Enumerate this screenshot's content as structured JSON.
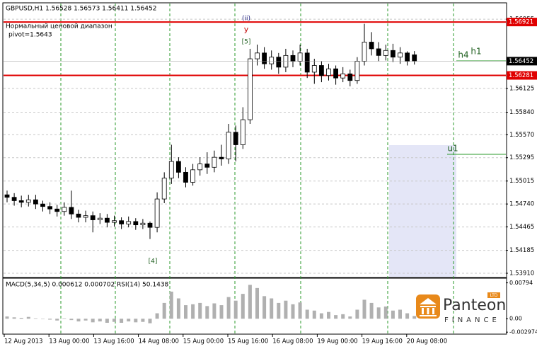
{
  "chart_data": {
    "type": "candlestick",
    "title": "GBPUSD,H1 1.56528 1.56573 1.56411 1.56452",
    "subtitle": "Нормальный ценовой диапазон",
    "pivot_label": "pivot=1.5643",
    "annotations": [
      "(ii)",
      "y",
      "[5]",
      "[4]",
      "h4",
      "h1",
      "u1"
    ],
    "x_labels": [
      "12 Aug 2013",
      "13 Aug 00:00",
      "13 Aug 16:00",
      "14 Aug 08:00",
      "15 Aug 00:00",
      "15 Aug 16:00",
      "16 Aug 08:00",
      "19 Aug 00:00",
      "19 Aug 16:00",
      "20 Aug 08:00"
    ],
    "open": [
      1.5485,
      1.5482,
      1.5478,
      1.5476,
      1.5479,
      1.5474,
      1.5471,
      1.5468,
      1.5465,
      1.547,
      1.5462,
      1.5458,
      1.546,
      1.5455,
      1.5457,
      1.5452,
      1.5454,
      1.545,
      1.5453,
      1.5449,
      1.5451,
      1.5446,
      1.548,
      1.5505,
      1.5525,
      1.5512,
      1.55,
      1.5515,
      1.5522,
      1.5518,
      1.553,
      1.5528,
      1.556,
      1.5545,
      1.5575,
      1.5648,
      1.5655,
      1.5642,
      1.565,
      1.5638,
      1.5652,
      1.5645,
      1.5655,
      1.5632,
      1.564,
      1.5628,
      1.5636,
      1.5625,
      1.563,
      1.5622,
      1.5645,
      1.5668,
      1.566,
      1.5652,
      1.5658,
      1.565,
      1.5655,
      1.56528
    ],
    "high": [
      1.549,
      1.5487,
      1.5484,
      1.5485,
      1.5485,
      1.5478,
      1.5476,
      1.5473,
      1.5476,
      1.549,
      1.5467,
      1.5466,
      1.5465,
      1.5463,
      1.5462,
      1.546,
      1.5458,
      1.5459,
      1.5457,
      1.5456,
      1.5453,
      1.5488,
      1.5512,
      1.5545,
      1.553,
      1.5518,
      1.5522,
      1.553,
      1.5536,
      1.5538,
      1.5545,
      1.557,
      1.5568,
      1.559,
      1.566,
      1.5665,
      1.5662,
      1.5658,
      1.5655,
      1.566,
      1.5658,
      1.5665,
      1.566,
      1.5648,
      1.5645,
      1.5642,
      1.564,
      1.5638,
      1.5635,
      1.565,
      1.569,
      1.568,
      1.5668,
      1.5665,
      1.5666,
      1.5662,
      1.5657,
      1.56573
    ],
    "low": [
      1.5476,
      1.5472,
      1.547,
      1.5471,
      1.5468,
      1.5465,
      1.5462,
      1.5459,
      1.546,
      1.5456,
      1.5452,
      1.5452,
      1.544,
      1.545,
      1.5446,
      1.5447,
      1.5444,
      1.5446,
      1.5443,
      1.5444,
      1.5432,
      1.544,
      1.5475,
      1.5498,
      1.5505,
      1.5494,
      1.5496,
      1.5508,
      1.551,
      1.5512,
      1.552,
      1.5522,
      1.5525,
      1.554,
      1.557,
      1.564,
      1.5636,
      1.5635,
      1.563,
      1.5632,
      1.5638,
      1.564,
      1.5625,
      1.5618,
      1.562,
      1.5622,
      1.5617,
      1.562,
      1.5615,
      1.5618,
      1.564,
      1.5652,
      1.5645,
      1.5646,
      1.5644,
      1.5642,
      1.564,
      1.56411
    ],
    "close": [
      1.5482,
      1.5478,
      1.5476,
      1.5479,
      1.5474,
      1.5471,
      1.5468,
      1.5465,
      1.547,
      1.5462,
      1.5458,
      1.546,
      1.5455,
      1.5457,
      1.5452,
      1.5454,
      1.545,
      1.5453,
      1.5449,
      1.5451,
      1.5446,
      1.548,
      1.5505,
      1.5525,
      1.5512,
      1.55,
      1.5515,
      1.5522,
      1.5518,
      1.553,
      1.5528,
      1.556,
      1.5545,
      1.5575,
      1.5648,
      1.5655,
      1.5642,
      1.565,
      1.5638,
      1.5652,
      1.5645,
      1.5655,
      1.5632,
      1.564,
      1.5628,
      1.5636,
      1.5625,
      1.563,
      1.5622,
      1.5645,
      1.5668,
      1.566,
      1.5652,
      1.5658,
      1.565,
      1.5655,
      1.5645,
      1.56452
    ],
    "ylim": [
      1.53859,
      1.57117
    ],
    "yticks": [
      1.56955,
      1.56125,
      {
        "value": 1.5584,
        "label": "1.55840"
      },
      {
        "value": 1.5557,
        "label": "1.55570"
      },
      1.55295,
      1.55015,
      {
        "value": 1.5474,
        "label": "1.54740"
      },
      1.54465,
      1.54185,
      {
        "value": 1.5391,
        "label": "1.53910"
      }
    ],
    "levels": [
      {
        "value": 1.56921,
        "color": "#e00000"
      },
      {
        "value": 1.56281,
        "color": "#e00000"
      }
    ],
    "last_price": 1.56452,
    "grid": true,
    "macd": {
      "label": "MACD(5,34,5) 0.000612 0.000702 RSI(14) 50.1438",
      "values": [
        0.0005,
        0.0003,
        0.0002,
        0.0004,
        0.0001,
        0.0,
        -0.0002,
        -0.0004,
        0.0001,
        -0.0003,
        -0.0006,
        -0.0004,
        -0.0008,
        -0.0006,
        -0.0009,
        -0.0007,
        -0.0009,
        -0.0006,
        -0.0008,
        -0.0007,
        -0.001,
        0.0012,
        0.0035,
        0.006,
        0.0045,
        0.003,
        0.0032,
        0.0035,
        0.0028,
        0.0034,
        0.003,
        0.0048,
        0.004,
        0.0055,
        0.0075,
        0.0068,
        0.005,
        0.0045,
        0.0035,
        0.004,
        0.0032,
        0.0036,
        0.002,
        0.0018,
        0.0012,
        0.0015,
        0.0008,
        0.001,
        0.0005,
        0.002,
        0.0042,
        0.0035,
        0.0025,
        0.0027,
        0.0018,
        0.002,
        0.0012,
        0.0006
      ],
      "color": "#b0b0b0",
      "y2lim": [
        -0.0031,
        0.0085
      ],
      "y2ticks": [
        0.00794,
        {
          "value": 0,
          "label": "0.00"
        },
        -0.002974
      ]
    },
    "logo": {
      "name": "Panteon",
      "sub": "FINANCE",
      "badge": "LTD"
    }
  }
}
